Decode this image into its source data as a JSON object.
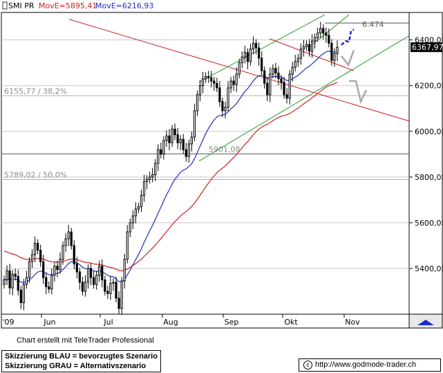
{
  "header": {
    "symbol": "SMI PR",
    "ma1_label": "MovE=5895,41",
    "ma2_label": "MovE=6216,93"
  },
  "footer": {
    "credit": "Chart erstellt mit TeleTrader Professional",
    "legend_line1": "Skizzierung BLAU = bevorzugtes Szenario",
    "legend_line2": "Skizzierung GRAU = Alternativszenario",
    "copyright_symbol": "c",
    "url": "http://www.godmode-trader.ch"
  },
  "colors": {
    "price": "#000000",
    "ma_short": "#1c2cc8",
    "ma_long": "#cc2020",
    "channel": "#2a9a2a",
    "trend_red": "#cc2020",
    "scenario_blue": "#2020e0",
    "scenario_grey": "#a8a8a8",
    "grid": "#c8c8c8"
  },
  "chart_data": {
    "type": "candlestick",
    "y_range": [
      5200,
      6520
    ],
    "y_ticks": [
      5400,
      5600,
      5800,
      6000,
      6200,
      6400
    ],
    "y_tick_labels": [
      "5400,00",
      "5600,00",
      "5800,00",
      "6000,00",
      "6200,00",
      "6400,00"
    ],
    "x_labels": [
      "'09",
      "Jun",
      "Jul",
      "Aug",
      "Sep",
      "Okt",
      "Nov"
    ],
    "last_price": "6367,97",
    "levels": [
      {
        "value": 6474,
        "label": "6.474"
      },
      {
        "value": 6155.77,
        "label": "6155,77 / 38,2%"
      },
      {
        "value": 5901.08,
        "label": "5901,08"
      },
      {
        "value": 5789.02,
        "label": "5789,02 / 50,0%"
      }
    ],
    "closes": [
      5350,
      5390,
      5315,
      5375,
      5365,
      5305,
      5250,
      5330,
      5360,
      5430,
      5460,
      5510,
      5480,
      5430,
      5360,
      5320,
      5310,
      5370,
      5410,
      5395,
      5440,
      5500,
      5530,
      5560,
      5500,
      5420,
      5385,
      5340,
      5300,
      5340,
      5400,
      5360,
      5330,
      5370,
      5410,
      5350,
      5300,
      5290,
      5335,
      5340,
      5270,
      5225,
      5345,
      5440,
      5560,
      5600,
      5630,
      5660,
      5670,
      5720,
      5780,
      5790,
      5800,
      5810,
      5860,
      5920,
      5900,
      5960,
      5980,
      5950,
      6010,
      5985,
      5950,
      5965,
      5920,
      5890,
      5945,
      5975,
      6090,
      6160,
      6200,
      6230,
      6240,
      6235,
      6220,
      6210,
      6190,
      6130,
      6090,
      6105,
      6190,
      6220,
      6205,
      6250,
      6300,
      6325,
      6345,
      6305,
      6360,
      6385,
      6365,
      6320,
      6265,
      6210,
      6160,
      6250,
      6275,
      6255,
      6230,
      6215,
      6160,
      6145,
      6250,
      6280,
      6305,
      6320,
      6360,
      6370,
      6380,
      6350,
      6395,
      6410,
      6430,
      6450,
      6430,
      6420,
      6385,
      6310,
      6340,
      6368
    ]
  }
}
